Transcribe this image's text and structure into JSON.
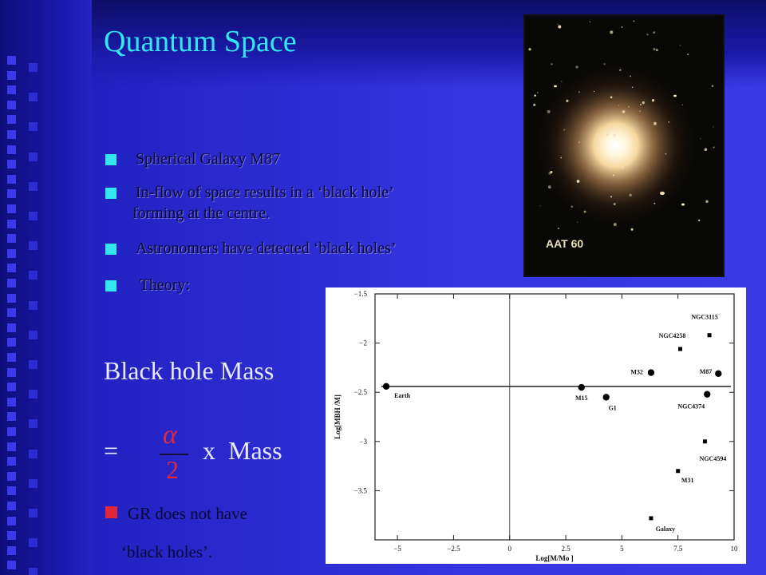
{
  "slide": {
    "title": "Quantum Space",
    "bullets": [
      {
        "line1": "Spherical Galaxy M87",
        "line2": ""
      },
      {
        "line1": "In-flow of space results in a ‘black hole’",
        "line2": "forming at the centre."
      },
      {
        "line1": "Astronomers have detected ‘black holes’",
        "line2": ""
      },
      {
        "line1": " Theory:",
        "line2": ""
      }
    ],
    "formula": {
      "lhs": "Black hole Mass",
      "equals": "=",
      "numerator": "α",
      "denominator": "2",
      "rhs": "x  Mass"
    },
    "note": {
      "line1": "GR does not have",
      "line2": "‘black holes’."
    }
  },
  "photo": {
    "caption": "AAT 60"
  },
  "colors": {
    "title": "#33e6f0",
    "bullet_marker": "#33e6f0",
    "note_marker": "#e0283c",
    "background": "#2b2bd2",
    "formula_greek": "#e0283c"
  },
  "chart_data": {
    "type": "scatter",
    "xlabel": "Log[M/Mo ]",
    "ylabel": "Log[MBH /M]",
    "xlim": [
      -6,
      10
    ],
    "ylim": [
      -4.0,
      -1.5
    ],
    "x_ticks": [
      -5,
      -2.5,
      0,
      2.5,
      5,
      7.5,
      10
    ],
    "x_tick_labels": [
      "−5",
      "−2.5",
      "0",
      "2.5",
      "5",
      "7.5",
      "10"
    ],
    "y_ticks": [
      -1.5,
      -2,
      -2.5,
      -3,
      -3.5
    ],
    "y_tick_labels": [
      "−1.5",
      "−2",
      "−2.5",
      "−3",
      "−3.5"
    ],
    "reference_line_y": -2.44,
    "grid": false,
    "series": [
      {
        "marker": "circle",
        "points": [
          {
            "label": "Earth",
            "x": -5.5,
            "y": -2.44
          },
          {
            "label": "M15",
            "x": 3.2,
            "y": -2.45
          },
          {
            "label": "G1",
            "x": 4.3,
            "y": -2.55
          },
          {
            "label": "M32",
            "x": 6.3,
            "y": -2.3
          },
          {
            "label": "M87",
            "x": 9.3,
            "y": -2.31
          },
          {
            "label": "NGC4374",
            "x": 8.8,
            "y": -2.52
          }
        ]
      },
      {
        "marker": "square",
        "points": [
          {
            "label": "NGC3115",
            "x": 8.9,
            "y": -1.92
          },
          {
            "label": "NGC4258",
            "x": 7.6,
            "y": -2.06
          },
          {
            "label": "NGC4594",
            "x": 8.7,
            "y": -3.0
          },
          {
            "label": "M31",
            "x": 7.5,
            "y": -3.3
          },
          {
            "label": "Galaxy",
            "x": 6.3,
            "y": -3.78
          }
        ]
      }
    ]
  }
}
